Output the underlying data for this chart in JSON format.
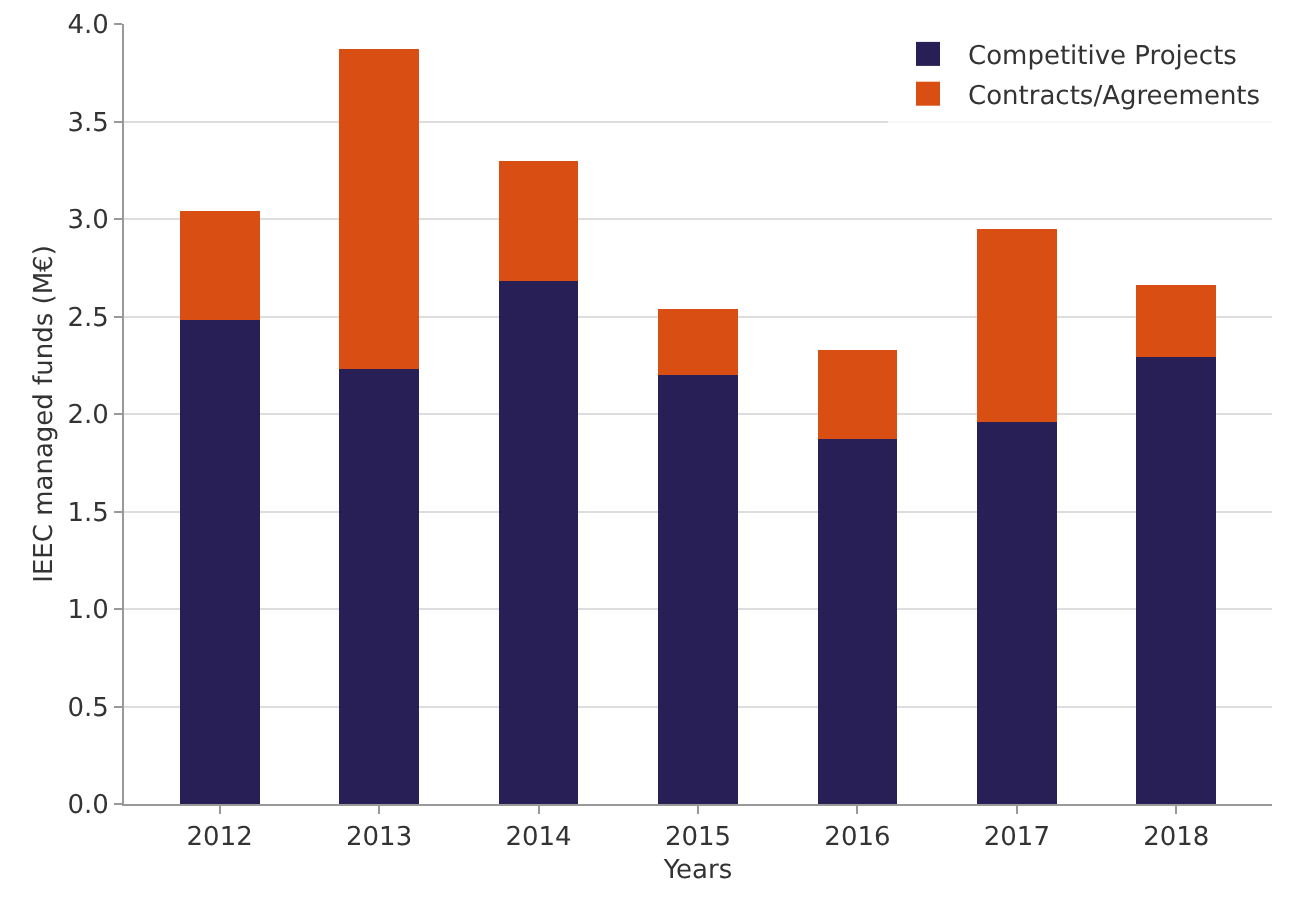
{
  "chart_data": {
    "type": "bar",
    "stacked": true,
    "xlabel": "Years",
    "ylabel": "IEEC managed funds (M€)",
    "categories": [
      "2012",
      "2013",
      "2014",
      "2015",
      "2016",
      "2017",
      "2018"
    ],
    "series": [
      {
        "name": "Competitive Projects",
        "color": "#271f55",
        "values": [
          2.48,
          2.23,
          2.68,
          2.2,
          1.87,
          1.96,
          2.29
        ]
      },
      {
        "name": "Contracts/Agreements",
        "color": "#d94e12",
        "values": [
          0.56,
          1.64,
          0.62,
          0.34,
          0.46,
          0.99,
          0.37
        ]
      }
    ],
    "ylim": [
      0,
      4
    ],
    "yticks": [
      {
        "value": 0,
        "label": "0.0"
      },
      {
        "value": 0.5,
        "label": "0.5"
      },
      {
        "value": 1,
        "label": "1.0"
      },
      {
        "value": 1.5,
        "label": "1.5"
      },
      {
        "value": 2,
        "label": "2.0"
      },
      {
        "value": 2.5,
        "label": "2.5"
      },
      {
        "value": 3,
        "label": "3.0"
      },
      {
        "value": 3.5,
        "label": "3.5"
      },
      {
        "value": 4,
        "label": "4.0"
      }
    ],
    "grid": "y",
    "legend": "top right"
  }
}
